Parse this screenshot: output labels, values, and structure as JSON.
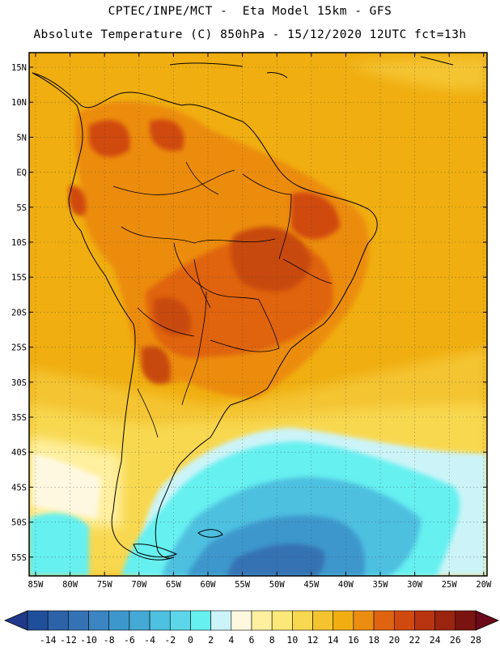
{
  "header": {
    "line1": "CPTEC/INPE/MCT -  Eta Model 15km - GFS",
    "line2": "Absolute Temperature (C) 850hPa - 15/12/2020 12UTC fct=13h"
  },
  "lat_labels": [
    "15N",
    "10N",
    "5N",
    "EQ",
    "5S",
    "10S",
    "15S",
    "20S",
    "25S",
    "30S",
    "35S",
    "40S",
    "45S",
    "50S",
    "55S"
  ],
  "lon_labels": [
    "85W",
    "80W",
    "75W",
    "70W",
    "65W",
    "60W",
    "55W",
    "50W",
    "45W",
    "40W",
    "35W",
    "30W",
    "25W",
    "20W"
  ],
  "colorbar": {
    "labels": [
      "-14",
      "-12",
      "-10",
      "-8",
      "-6",
      "-4",
      "-2",
      "0",
      "2",
      "4",
      "6",
      "8",
      "10",
      "12",
      "14",
      "16",
      "18",
      "20",
      "22",
      "24",
      "26",
      "28"
    ],
    "colors": [
      "#1f4e9a",
      "#2c62a8",
      "#3472b4",
      "#3a85c2",
      "#3e97cc",
      "#45a9d6",
      "#4ec0e0",
      "#5cd6e8",
      "#66f0f0",
      "#ccf4f8",
      "#fff8e0",
      "#fff0a0",
      "#fce878",
      "#f8d850",
      "#f4c430",
      "#f0ae10",
      "#ec8c10",
      "#e06410",
      "#d04a10",
      "#b83410",
      "#9a2410",
      "#7a1410"
    ],
    "left_arrow_color": "#1f3a8a",
    "right_arrow_color": "#6a0a1a"
  },
  "map_colors": {
    "ocean_warm": "#f0ae10",
    "ocean_mid": "#f4c430",
    "ocean_cool": "#f8d850",
    "land_hot": "#e06410",
    "land_very_hot": "#c84a10",
    "cold_1": "#66f0f0",
    "cold_2": "#4ec0e0",
    "cold_3": "#3e97cc",
    "cold_4": "#3472b4"
  }
}
